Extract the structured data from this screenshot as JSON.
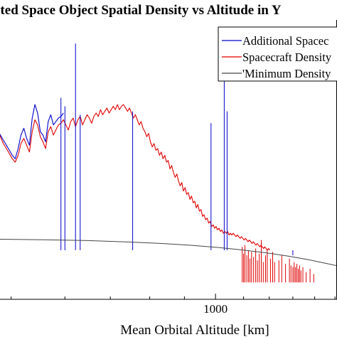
{
  "chart_data": {
    "type": "line",
    "title": "cted Space Object Spatial Density vs Altitude in Y",
    "xlabel": "Mean Orbital Altitude [km]",
    "ylabel": "",
    "x_scale": "log",
    "xlim": [
      470,
      1510
    ],
    "y_scale": "log",
    "ylim": [
      -1.19,
      0.46
    ],
    "grid": false,
    "legend_position": "top-right",
    "x_ticks": [
      {
        "value": 1000,
        "label": "1000"
      }
    ],
    "series": [
      {
        "name": "Additional Spacec",
        "color": "#0000cc",
        "spikes": [
          {
            "x": 592,
            "y": 0.0
          },
          {
            "x": 600,
            "y": -0.05
          },
          {
            "x": 622,
            "y": 0.32
          },
          {
            "x": 632,
            "y": -0.1
          },
          {
            "x": 755,
            "y": -0.08
          },
          {
            "x": 985,
            "y": -0.15
          },
          {
            "x": 1030,
            "y": 0.24
          },
          {
            "x": 1040,
            "y": -0.08
          },
          {
            "x": 1300,
            "y": -0.93
          }
        ],
        "x": [
          470,
          476,
          482,
          487,
          492,
          497,
          502,
          507,
          512,
          517,
          522,
          527,
          532,
          537,
          542,
          547,
          552,
          557,
          562,
          567,
          572,
          577,
          582,
          587,
          592,
          597
        ],
        "y": [
          -0.14,
          -0.18,
          -0.22,
          -0.25,
          -0.28,
          -0.31,
          -0.34,
          -0.36,
          -0.3,
          -0.22,
          -0.18,
          -0.24,
          -0.28,
          -0.12,
          -0.04,
          -0.09,
          -0.2,
          -0.22,
          -0.26,
          -0.14,
          -0.1,
          -0.16,
          -0.14,
          -0.12,
          -0.11,
          -0.09
        ]
      },
      {
        "name": "Spacecraft Density",
        "color": "#e00000",
        "x": [
          470,
          476,
          482,
          487,
          492,
          497,
          502,
          507,
          512,
          517,
          522,
          527,
          532,
          537,
          542,
          547,
          552,
          557,
          562,
          567,
          572,
          577,
          582,
          587,
          592,
          597,
          602,
          607,
          612,
          617,
          622,
          627,
          632,
          637,
          642,
          647,
          652,
          657,
          662,
          667,
          672,
          677,
          682,
          687,
          692,
          697,
          702,
          707,
          712,
          717,
          722,
          727,
          732,
          737,
          742,
          747,
          752,
          757,
          762,
          767,
          772,
          777,
          782,
          787,
          792,
          797,
          802,
          807,
          812,
          817,
          822,
          827,
          832,
          837,
          842,
          847,
          852,
          857,
          862,
          867,
          872,
          877,
          882,
          887,
          892,
          897,
          902,
          907,
          912,
          917,
          922,
          927,
          932,
          937,
          942,
          947,
          952,
          957,
          962,
          967,
          972,
          977,
          982,
          987,
          992,
          997,
          1002,
          1007,
          1012,
          1017,
          1022,
          1027,
          1032,
          1037,
          1042,
          1047,
          1052,
          1057,
          1062,
          1067,
          1072,
          1077,
          1082,
          1087,
          1092,
          1097,
          1102,
          1107,
          1112,
          1117,
          1122,
          1127,
          1132,
          1137,
          1142,
          1147,
          1152,
          1157,
          1162,
          1167,
          1172,
          1177,
          1182,
          1187,
          1192,
          1197,
          1202
        ],
        "y": [
          -0.14,
          -0.18,
          -0.23,
          -0.27,
          -0.3,
          -0.33,
          -0.36,
          -0.38,
          -0.34,
          -0.27,
          -0.24,
          -0.28,
          -0.32,
          -0.2,
          -0.13,
          -0.16,
          -0.23,
          -0.26,
          -0.3,
          -0.2,
          -0.17,
          -0.22,
          -0.19,
          -0.16,
          -0.15,
          -0.13,
          -0.16,
          -0.19,
          -0.14,
          -0.12,
          -0.17,
          -0.13,
          -0.11,
          -0.16,
          -0.13,
          -0.1,
          -0.12,
          -0.15,
          -0.11,
          -0.09,
          -0.11,
          -0.07,
          -0.1,
          -0.08,
          -0.06,
          -0.09,
          -0.07,
          -0.05,
          -0.07,
          -0.04,
          -0.07,
          -0.05,
          -0.04,
          -0.06,
          -0.08,
          -0.06,
          -0.09,
          -0.12,
          -0.1,
          -0.13,
          -0.16,
          -0.14,
          -0.18,
          -0.2,
          -0.23,
          -0.21,
          -0.26,
          -0.29,
          -0.27,
          -0.31,
          -0.3,
          -0.34,
          -0.32,
          -0.36,
          -0.34,
          -0.38,
          -0.37,
          -0.42,
          -0.4,
          -0.44,
          -0.47,
          -0.45,
          -0.49,
          -0.52,
          -0.5,
          -0.55,
          -0.53,
          -0.57,
          -0.56,
          -0.6,
          -0.58,
          -0.62,
          -0.61,
          -0.65,
          -0.63,
          -0.67,
          -0.66,
          -0.7,
          -0.69,
          -0.72,
          -0.71,
          -0.74,
          -0.73,
          -0.76,
          -0.75,
          -0.77,
          -0.76,
          -0.78,
          -0.77,
          -0.79,
          -0.78,
          -0.8,
          -0.79,
          -0.8,
          -0.79,
          -0.81,
          -0.8,
          -0.81,
          -0.8,
          -0.81,
          -0.82,
          -0.81,
          -0.82,
          -0.83,
          -0.82,
          -0.83,
          -0.84,
          -0.83,
          -0.84,
          -0.85,
          -0.84,
          -0.85,
          -0.86,
          -0.85,
          -0.86,
          -0.87,
          -0.86,
          -0.87,
          -0.88,
          -0.87,
          -0.88,
          -0.89,
          -0.88,
          -0.89,
          -0.9,
          -0.89,
          -0.9
        ],
        "spikes": [
          {
            "x": 1095,
            "y": -0.88
          },
          {
            "x": 1100,
            "y": -0.92
          },
          {
            "x": 1105,
            "y": -0.87
          },
          {
            "x": 1112,
            "y": -0.93
          },
          {
            "x": 1118,
            "y": -0.9
          },
          {
            "x": 1124,
            "y": -0.95
          },
          {
            "x": 1130,
            "y": -0.91
          },
          {
            "x": 1138,
            "y": -0.94
          },
          {
            "x": 1146,
            "y": -0.89
          },
          {
            "x": 1153,
            "y": -0.96
          },
          {
            "x": 1160,
            "y": -0.92
          },
          {
            "x": 1168,
            "y": -0.84
          },
          {
            "x": 1176,
            "y": -0.97
          },
          {
            "x": 1185,
            "y": -0.93
          },
          {
            "x": 1192,
            "y": -0.9
          },
          {
            "x": 1205,
            "y": -0.95
          },
          {
            "x": 1214,
            "y": -0.91
          },
          {
            "x": 1222,
            "y": -0.97
          },
          {
            "x": 1240,
            "y": -0.96
          },
          {
            "x": 1252,
            "y": -0.93
          },
          {
            "x": 1268,
            "y": -0.98
          },
          {
            "x": 1285,
            "y": -0.95
          },
          {
            "x": 1292,
            "y": -0.99
          },
          {
            "x": 1300,
            "y": -1.0
          },
          {
            "x": 1306,
            "y": -0.97
          },
          {
            "x": 1312,
            "y": -1.0
          },
          {
            "x": 1318,
            "y": -0.98
          },
          {
            "x": 1324,
            "y": -1.01
          },
          {
            "x": 1330,
            "y": -0.99
          },
          {
            "x": 1336,
            "y": -1.02
          },
          {
            "x": 1345,
            "y": -1.0
          },
          {
            "x": 1360,
            "y": -1.03
          },
          {
            "x": 1378,
            "y": -1.01
          },
          {
            "x": 1395,
            "y": -1.04
          }
        ]
      },
      {
        "name": "'Minimum Density",
        "color": "#444444",
        "x": [
          470,
          560,
          650,
          740,
          830,
          920,
          1010,
          1100,
          1190,
          1280,
          1370,
          1460,
          1510
        ],
        "y": [
          -0.835,
          -0.838,
          -0.843,
          -0.851,
          -0.86,
          -0.871,
          -0.884,
          -0.899,
          -0.916,
          -0.935,
          -0.956,
          -0.979,
          -0.992
        ]
      }
    ]
  }
}
